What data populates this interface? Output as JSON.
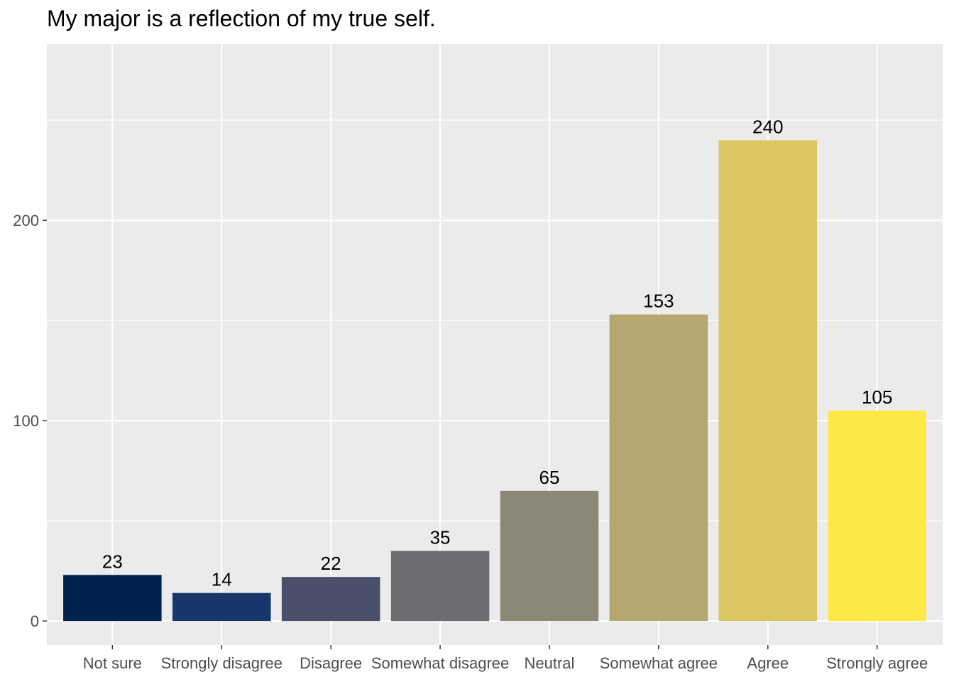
{
  "chart_data": {
    "type": "bar",
    "title": "My major is a reflection of my true self.",
    "xlabel": "",
    "ylabel": "",
    "categories": [
      "Not sure",
      "Strongly disagree",
      "Disagree",
      "Somewhat disagree",
      "Neutral",
      "Somewhat agree",
      "Agree",
      "Strongly agree"
    ],
    "values": [
      23,
      14,
      22,
      35,
      65,
      153,
      240,
      105
    ],
    "data_labels": [
      "23",
      "14",
      "22",
      "35",
      "65",
      "153",
      "240",
      "105"
    ],
    "colors": [
      "#00224e",
      "#17366b",
      "#4a506b",
      "#6c6d71",
      "#8c8877",
      "#b5a770",
      "#dbc661",
      "#fee845"
    ],
    "ylim": [
      -12,
      288
    ],
    "y_ticks": [
      0,
      100,
      200
    ],
    "y_tick_labels": [
      "0",
      "100",
      "200"
    ],
    "panel_background": "#ebebeb",
    "grid": true,
    "legend": "none"
  }
}
